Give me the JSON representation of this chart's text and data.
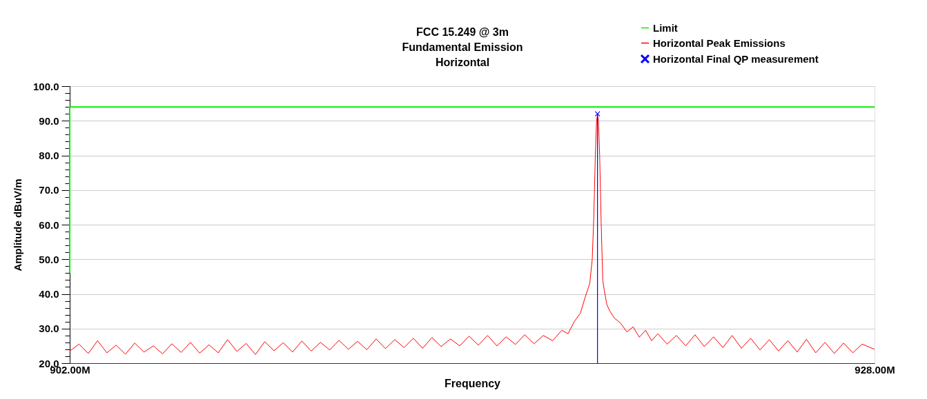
{
  "chart_data": {
    "type": "line",
    "title": "FCC 15.249 @ 3m\nFundamental Emission\nHorizontal",
    "xlabel": "Frequency",
    "ylabel": "Amplitude dBuV/m",
    "xlim": [
      902,
      928
    ],
    "xticks": [
      {
        "value": 902,
        "label": "902.00M"
      },
      {
        "value": 928,
        "label": "928.00M"
      }
    ],
    "ylim": [
      20,
      100
    ],
    "yticks": [
      {
        "value": 20,
        "label": "20.0"
      },
      {
        "value": 22,
        "label": null
      },
      {
        "value": 24,
        "label": null
      },
      {
        "value": 26,
        "label": null
      },
      {
        "value": 28,
        "label": null
      },
      {
        "value": 30,
        "label": "30.0"
      },
      {
        "value": 32,
        "label": null
      },
      {
        "value": 34,
        "label": null
      },
      {
        "value": 36,
        "label": null
      },
      {
        "value": 38,
        "label": null
      },
      {
        "value": 40,
        "label": "40.0"
      },
      {
        "value": 42,
        "label": null
      },
      {
        "value": 44,
        "label": null
      },
      {
        "value": 46,
        "label": null
      },
      {
        "value": 48,
        "label": null
      },
      {
        "value": 50,
        "label": "50.0"
      },
      {
        "value": 52,
        "label": null
      },
      {
        "value": 54,
        "label": null
      },
      {
        "value": 56,
        "label": null
      },
      {
        "value": 58,
        "label": null
      },
      {
        "value": 60,
        "label": "60.0"
      },
      {
        "value": 62,
        "label": null
      },
      {
        "value": 64,
        "label": null
      },
      {
        "value": 66,
        "label": null
      },
      {
        "value": 68,
        "label": null
      },
      {
        "value": 70,
        "label": "70.0"
      },
      {
        "value": 72,
        "label": null
      },
      {
        "value": 74,
        "label": null
      },
      {
        "value": 76,
        "label": null
      },
      {
        "value": 78,
        "label": null
      },
      {
        "value": 80,
        "label": "80.0"
      },
      {
        "value": 82,
        "label": null
      },
      {
        "value": 84,
        "label": null
      },
      {
        "value": 86,
        "label": null
      },
      {
        "value": 88,
        "label": null
      },
      {
        "value": 90,
        "label": "90.0"
      },
      {
        "value": 92,
        "label": null
      },
      {
        "value": 94,
        "label": null
      },
      {
        "value": 96,
        "label": null
      },
      {
        "value": 98,
        "label": null
      },
      {
        "value": 100,
        "label": "100.0"
      }
    ],
    "grid": "y",
    "legend": "top right",
    "line_style": "solid",
    "series": [
      {
        "name": "Limit",
        "color": "#00ee00",
        "marker": "none",
        "x": [
          902,
          902,
          928
        ],
        "values": [
          46,
          94,
          94
        ]
      },
      {
        "name": "Horizontal Peak Emissions",
        "color": "#ff0000",
        "marker": "none",
        "x": [
          902.0,
          902.3,
          902.6,
          902.9,
          903.2,
          903.5,
          903.8,
          904.1,
          904.4,
          904.7,
          905.0,
          905.3,
          905.6,
          905.9,
          906.2,
          906.5,
          906.8,
          907.1,
          907.4,
          907.7,
          908.0,
          908.3,
          908.6,
          908.9,
          909.2,
          909.5,
          909.8,
          910.1,
          910.4,
          910.7,
          911.0,
          911.3,
          911.6,
          911.9,
          912.2,
          912.5,
          912.8,
          913.1,
          913.4,
          913.7,
          914.0,
          914.3,
          914.6,
          914.9,
          915.2,
          915.5,
          915.8,
          916.1,
          916.4,
          916.7,
          917.0,
          917.3,
          917.6,
          917.9,
          918.1,
          918.3,
          918.5,
          918.65,
          918.8,
          918.88,
          918.93,
          918.98,
          919.02,
          919.05,
          919.08,
          919.12,
          919.17,
          919.22,
          919.27,
          919.35,
          919.45,
          919.6,
          919.8,
          920.0,
          920.2,
          920.4,
          920.6,
          920.8,
          921.0,
          921.3,
          921.6,
          921.9,
          922.2,
          922.5,
          922.8,
          923.1,
          923.4,
          923.7,
          924.0,
          924.3,
          924.6,
          924.9,
          925.2,
          925.5,
          925.8,
          926.1,
          926.4,
          926.7,
          927.0,
          927.3,
          927.6,
          928.0
        ],
        "values": [
          23.5,
          25.5,
          22.8,
          26.5,
          23.0,
          25.2,
          22.6,
          25.8,
          23.2,
          25.0,
          22.7,
          25.6,
          23.1,
          26.0,
          22.9,
          25.3,
          23.0,
          26.8,
          23.4,
          25.7,
          22.5,
          26.2,
          23.6,
          25.9,
          23.2,
          26.4,
          23.5,
          26.0,
          23.8,
          26.6,
          24.0,
          26.3,
          23.9,
          27.0,
          24.2,
          26.8,
          24.5,
          27.2,
          24.3,
          27.4,
          24.8,
          27.0,
          25.0,
          27.8,
          25.2,
          28.0,
          25.0,
          27.6,
          25.4,
          28.2,
          25.6,
          28.0,
          26.5,
          29.5,
          28.5,
          32.0,
          34.5,
          39.0,
          43.0,
          50.0,
          62.0,
          80.0,
          90.0,
          91.8,
          90.0,
          80.0,
          60.0,
          44.0,
          41.0,
          37.0,
          35.0,
          33.0,
          31.5,
          29.0,
          30.5,
          27.5,
          29.5,
          26.5,
          28.5,
          25.5,
          28.0,
          25.0,
          28.2,
          24.8,
          27.6,
          24.5,
          28.0,
          24.3,
          27.2,
          23.8,
          26.8,
          23.5,
          26.5,
          23.2,
          26.9,
          23.0,
          26.0,
          22.8,
          25.8,
          23.0,
          25.5,
          24.0
        ]
      },
      {
        "name": "Horizontal Final QP measurement",
        "color": "#0000ff",
        "type": "lollipop",
        "marker": "cross",
        "x": [
          919.05
        ],
        "values": [
          92.0
        ]
      }
    ]
  }
}
